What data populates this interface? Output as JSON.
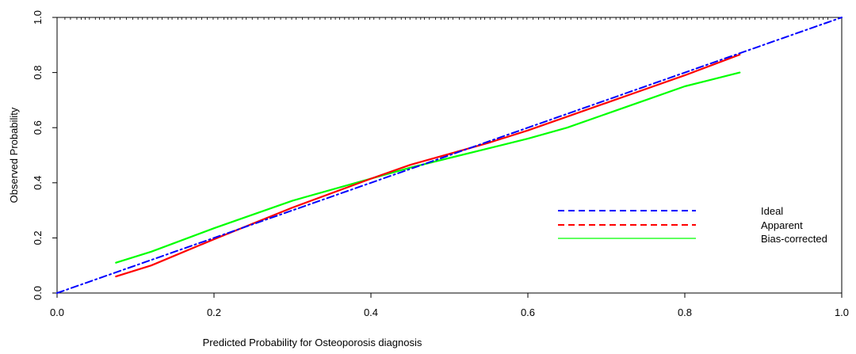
{
  "chart_data": {
    "type": "line",
    "title": "",
    "xlabel": "Predicted Probability for Osteoporosis diagnosis",
    "ylabel": "Observed Probability",
    "xlim": [
      0,
      1
    ],
    "ylim": [
      0,
      1
    ],
    "xticks": [
      "0.0",
      "0.2",
      "0.4",
      "0.6",
      "0.8",
      "1.0"
    ],
    "yticks": [
      "0.0",
      "0.2",
      "0.4",
      "0.6",
      "0.8",
      "1.0"
    ],
    "grid": false,
    "legend_position": "right",
    "series": [
      {
        "name": "Ideal",
        "style": "dashed",
        "color": "#0000ff",
        "x": [
          0,
          1
        ],
        "y": [
          0,
          1
        ]
      },
      {
        "name": "Apparent",
        "style": "solid",
        "legend_style": "dashed",
        "color": "#ff0000",
        "x": [
          0.075,
          0.12,
          0.2,
          0.3,
          0.4,
          0.45,
          0.5,
          0.55,
          0.6,
          0.65,
          0.7,
          0.75,
          0.8,
          0.87
        ],
        "y": [
          0.06,
          0.1,
          0.195,
          0.31,
          0.415,
          0.465,
          0.505,
          0.545,
          0.59,
          0.64,
          0.69,
          0.74,
          0.79,
          0.865
        ]
      },
      {
        "name": "Bias-corrected",
        "style": "solid",
        "color": "#00ff00",
        "x": [
          0.075,
          0.12,
          0.2,
          0.3,
          0.4,
          0.45,
          0.5,
          0.55,
          0.6,
          0.65,
          0.7,
          0.75,
          0.8,
          0.87
        ],
        "y": [
          0.11,
          0.15,
          0.235,
          0.335,
          0.415,
          0.455,
          0.49,
          0.525,
          0.56,
          0.6,
          0.65,
          0.7,
          0.75,
          0.8
        ]
      }
    ]
  }
}
